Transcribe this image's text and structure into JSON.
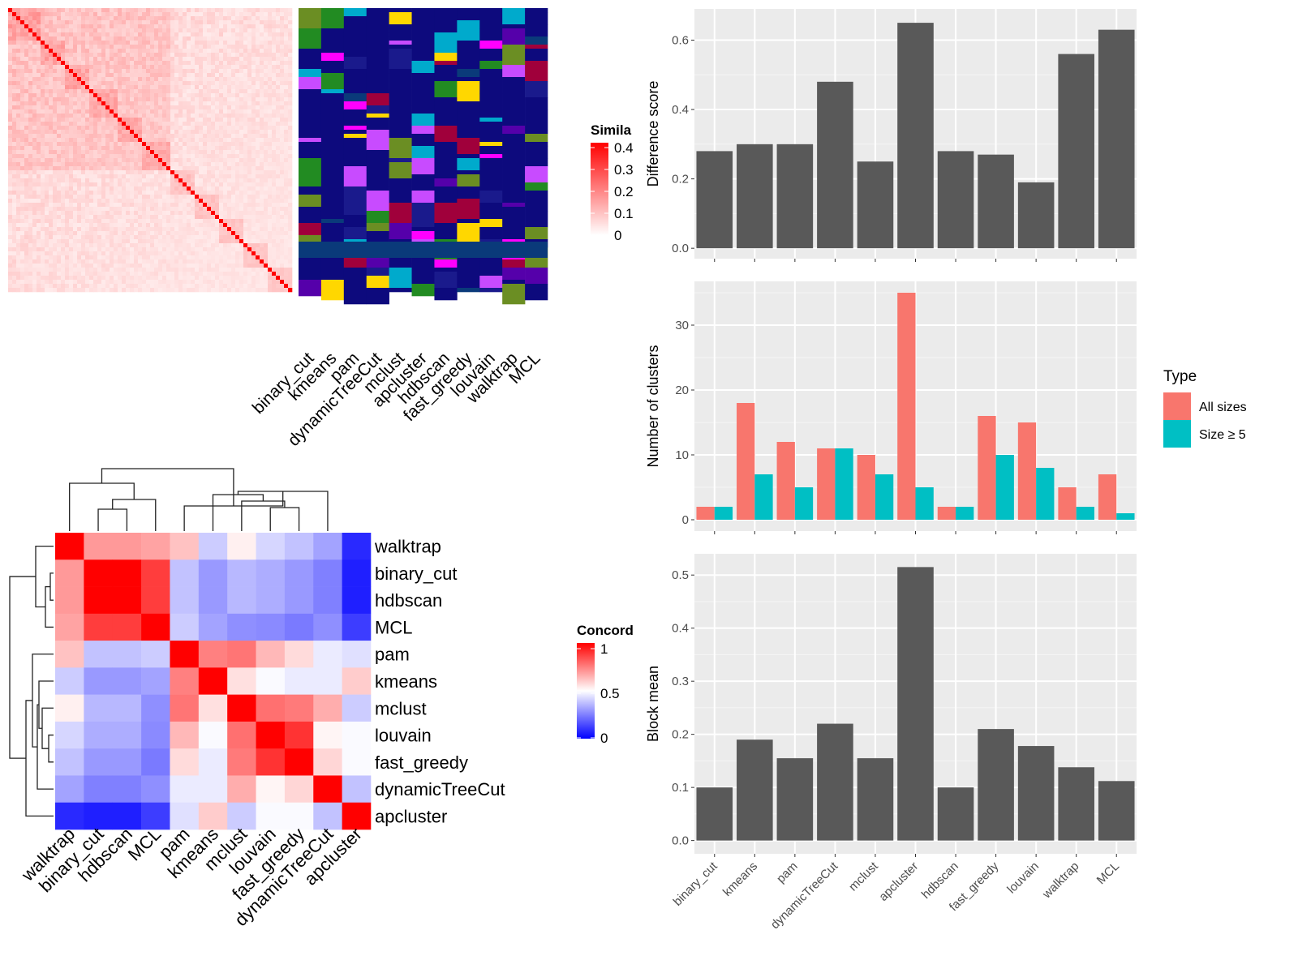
{
  "chart_data": [
    {
      "type": "heatmap",
      "panel": "similarity-heatmap",
      "legend_title": "Simila",
      "legend_ticks": [
        "0.4",
        "0.3",
        "0.2",
        "0.1",
        "0"
      ],
      "color_low": "#ffffff",
      "color_high": "#ff0000",
      "n_terms": 70,
      "methods": [
        "binary_cut",
        "kmeans",
        "pam",
        "dynamicTreeCut",
        "mclust",
        "apcluster",
        "hdbscan",
        "fast_greedy",
        "louvain",
        "walktrap",
        "MCL"
      ],
      "cluster_colors": [
        "#0d0a7d",
        "#1a1a8c",
        "#ff00ff",
        "#228b22",
        "#a0003b",
        "#5500aa",
        "#00aacc",
        "#6b8e23",
        "#ffd700",
        "#c84bff",
        "#0a3a7a"
      ]
    },
    {
      "type": "heatmap",
      "panel": "concordance-heatmap",
      "legend_title": "Concord",
      "legend_ticks": [
        "1",
        "0.5",
        "0"
      ],
      "color_low": "#0000ff",
      "color_mid": "#ffffff",
      "color_high": "#ff0000",
      "rows": [
        "walktrap",
        "binary_cut",
        "hdbscan",
        "MCL",
        "pam",
        "kmeans",
        "mclust",
        "louvain",
        "fast_greedy",
        "dynamicTreeCut",
        "apcluster"
      ],
      "cols": [
        "walktrap",
        "binary_cut",
        "hdbscan",
        "MCL",
        "pam",
        "kmeans",
        "mclust",
        "louvain",
        "fast_greedy",
        "dynamicTreeCut",
        "apcluster"
      ],
      "values": [
        [
          1.0,
          0.7,
          0.7,
          0.68,
          0.62,
          0.4,
          0.53,
          0.42,
          0.38,
          0.32,
          0.08
        ],
        [
          0.7,
          1.0,
          1.0,
          0.88,
          0.38,
          0.3,
          0.36,
          0.34,
          0.3,
          0.25,
          0.06
        ],
        [
          0.7,
          1.0,
          1.0,
          0.88,
          0.38,
          0.3,
          0.36,
          0.34,
          0.3,
          0.25,
          0.06
        ],
        [
          0.68,
          0.88,
          0.88,
          1.0,
          0.4,
          0.32,
          0.28,
          0.27,
          0.24,
          0.28,
          0.12
        ],
        [
          0.62,
          0.38,
          0.38,
          0.4,
          1.0,
          0.75,
          0.77,
          0.64,
          0.57,
          0.46,
          0.44
        ],
        [
          0.4,
          0.3,
          0.3,
          0.32,
          0.75,
          1.0,
          0.56,
          0.49,
          0.46,
          0.46,
          0.6
        ],
        [
          0.53,
          0.36,
          0.36,
          0.28,
          0.77,
          0.56,
          1.0,
          0.78,
          0.76,
          0.66,
          0.4
        ],
        [
          0.42,
          0.34,
          0.34,
          0.27,
          0.64,
          0.49,
          0.78,
          1.0,
          0.9,
          0.52,
          0.49
        ],
        [
          0.38,
          0.3,
          0.3,
          0.24,
          0.57,
          0.46,
          0.76,
          0.9,
          1.0,
          0.58,
          0.49
        ],
        [
          0.32,
          0.25,
          0.25,
          0.28,
          0.46,
          0.46,
          0.66,
          0.52,
          0.58,
          1.0,
          0.38
        ],
        [
          0.08,
          0.06,
          0.06,
          0.12,
          0.44,
          0.6,
          0.4,
          0.49,
          0.49,
          0.38,
          1.0
        ]
      ]
    },
    {
      "type": "bar",
      "panel": "difference-score",
      "categories": [
        "binary_cut",
        "kmeans",
        "pam",
        "dynamicTreeCut",
        "mclust",
        "apcluster",
        "hdbscan",
        "fast_greedy",
        "louvain",
        "walktrap",
        "MCL"
      ],
      "values": [
        0.28,
        0.3,
        0.3,
        0.48,
        0.25,
        0.65,
        0.28,
        0.27,
        0.19,
        0.56,
        0.63
      ],
      "ylabel": "Difference score",
      "ylim": [
        -0.03,
        0.69
      ],
      "yticks": [
        0.0,
        0.2,
        0.4,
        0.6
      ],
      "ytick_labels": [
        "0.0",
        "0.2",
        "0.4",
        "0.6"
      ],
      "bar_color": "#595959",
      "grid": true
    },
    {
      "type": "bar",
      "panel": "number-of-clusters",
      "categories": [
        "binary_cut",
        "kmeans",
        "pam",
        "dynamicTreeCut",
        "mclust",
        "apcluster",
        "hdbscan",
        "fast_greedy",
        "louvain",
        "walktrap",
        "MCL"
      ],
      "series": [
        {
          "name": "All sizes",
          "color": "#f8766d",
          "values": [
            2,
            18,
            12,
            11,
            10,
            35,
            2,
            16,
            15,
            5,
            7
          ]
        },
        {
          "name": "Size ≥ 5",
          "color": "#00bfc4",
          "values": [
            2,
            7,
            5,
            11,
            7,
            5,
            2,
            10,
            8,
            2,
            1
          ]
        }
      ],
      "ylabel": "Number of clusters",
      "ylim": [
        -1.75,
        36.75
      ],
      "yticks": [
        0,
        10,
        20,
        30
      ],
      "ytick_labels": [
        "0",
        "10",
        "20",
        "30"
      ],
      "legend_title": "Type",
      "legend_position": "right",
      "grid": true
    },
    {
      "type": "bar",
      "panel": "block-mean",
      "categories": [
        "binary_cut",
        "kmeans",
        "pam",
        "dynamicTreeCut",
        "mclust",
        "apcluster",
        "hdbscan",
        "fast_greedy",
        "louvain",
        "walktrap",
        "MCL"
      ],
      "values": [
        0.1,
        0.19,
        0.155,
        0.22,
        0.155,
        0.515,
        0.1,
        0.21,
        0.178,
        0.138,
        0.112
      ],
      "ylabel": "Block mean",
      "ylim": [
        -0.025,
        0.54
      ],
      "yticks": [
        0.0,
        0.1,
        0.2,
        0.3,
        0.4,
        0.5
      ],
      "ytick_labels": [
        "0.0",
        "0.1",
        "0.2",
        "0.3",
        "0.4",
        "0.5"
      ],
      "bar_color": "#595959",
      "grid": true
    }
  ]
}
